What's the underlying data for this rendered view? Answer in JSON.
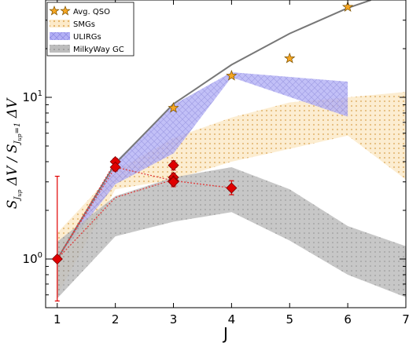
{
  "chart_data": {
    "type": "line",
    "xlabel": "J",
    "ylabel": "S_{J_up} ΔV / S_{J_up=1} ΔV",
    "xlim": [
      0.8,
      7.0
    ],
    "ylim": [
      0.5,
      40
    ],
    "yscale": "log",
    "xticks": [
      1,
      2,
      3,
      4,
      5,
      6,
      7
    ],
    "yticks": [
      {
        "value": 1,
        "label": "10^0"
      },
      {
        "value": 10,
        "label": "10^1"
      }
    ],
    "legend_position": "top-left",
    "legend": [
      {
        "label": "Avg. QSO",
        "kind": "star",
        "color": "#f5a623"
      },
      {
        "label": "SMGs",
        "kind": "band",
        "color": "#fce0b0",
        "hatch": "dots"
      },
      {
        "label": "ULIRGs",
        "kind": "band",
        "color": "#b7b5f7",
        "hatch": "cross"
      },
      {
        "label": "MilkyWay GC",
        "kind": "band",
        "color": "#c8c8c8",
        "hatch": "dots"
      }
    ],
    "series": [
      {
        "name": "Avg. QSO",
        "kind": "star",
        "x": [
          3,
          4,
          5,
          6
        ],
        "y": [
          8.6,
          13.6,
          17.4,
          36.2
        ]
      },
      {
        "kind": "line",
        "color": "#777777",
        "x": [
          1,
          2,
          3,
          4,
          5,
          6,
          6.4
        ],
        "y": [
          1.0,
          3.9,
          9.1,
          15.9,
          24.8,
          35.7,
          40.0
        ]
      },
      {
        "name": "SMGs",
        "kind": "band",
        "x": [
          1,
          2,
          3,
          4,
          5,
          6,
          7
        ],
        "lower": [
          0.6,
          2.7,
          3.1,
          4.0,
          4.8,
          5.8,
          3.1
        ],
        "upper": [
          1.45,
          3.5,
          5.6,
          7.5,
          9.3,
          10.0,
          10.8
        ]
      },
      {
        "name": "ULIRGs",
        "kind": "band",
        "x": [
          1,
          2,
          3,
          4,
          6
        ],
        "lower": [
          1.0,
          2.9,
          4.5,
          13.3,
          7.6
        ],
        "upper": [
          1.0,
          4.0,
          9.0,
          14.3,
          12.5
        ]
      },
      {
        "name": "MilkyWay GC",
        "kind": "band",
        "x": [
          1,
          2,
          3,
          4,
          5,
          6,
          7
        ],
        "lower": [
          0.57,
          1.38,
          1.7,
          1.95,
          1.3,
          0.8,
          0.58
        ],
        "upper": [
          1.28,
          2.45,
          3.2,
          3.7,
          2.7,
          1.6,
          1.2
        ]
      },
      {
        "name": "data",
        "kind": "diamond",
        "color": "#e00000",
        "x": [
          1,
          2,
          2,
          3,
          3,
          3,
          3,
          4
        ],
        "y": [
          1.0,
          4.0,
          3.7,
          3.8,
          3.2,
          3.05,
          3.0,
          2.75
        ],
        "yerr_low": [
          0.45,
          0.2,
          0.2,
          0.25,
          0.2,
          0.2,
          0.2,
          0.25
        ],
        "yerr_high": [
          2.25,
          0.2,
          0.2,
          0.25,
          0.2,
          0.2,
          0.2,
          0.3
        ]
      }
    ],
    "dotted_lines": [
      {
        "color": "#e04040",
        "x": [
          1,
          2,
          3,
          4
        ],
        "y": [
          1.0,
          3.7,
          3.05,
          2.75
        ]
      },
      {
        "color": "#e04040",
        "x": [
          1,
          2,
          3
        ],
        "y": [
          1.0,
          2.4,
          3.1
        ]
      },
      {
        "color": "#e04040",
        "x": [
          1,
          2
        ],
        "y": [
          1.0,
          4.0
        ]
      }
    ]
  }
}
